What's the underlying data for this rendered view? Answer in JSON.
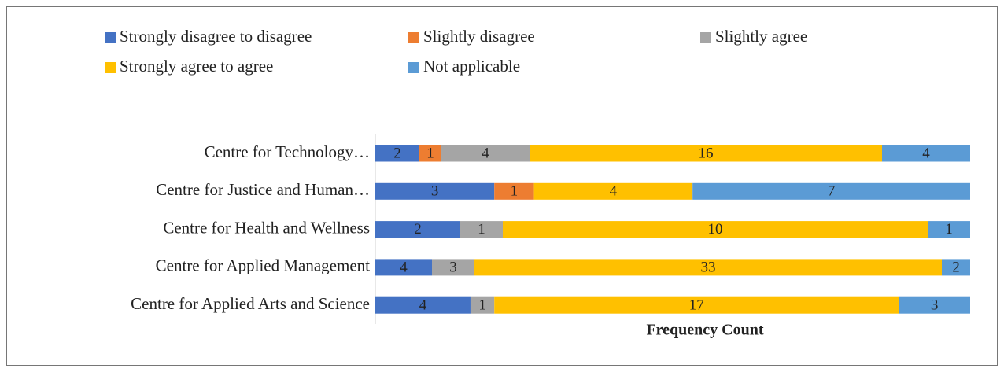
{
  "chart_data": {
    "type": "stacked-bar-100",
    "orientation": "horizontal",
    "x_axis_label": "Frequency Count",
    "categories": [
      "Centre for Technology…",
      "Centre for Justice and Human…",
      "Centre for Health and Wellness",
      "Centre for Applied Management",
      "Centre for Applied Arts and Science"
    ],
    "series": [
      {
        "name": "Strongly disagree to disagree",
        "color": "#4472c4",
        "values": [
          2,
          3,
          2,
          4,
          4
        ]
      },
      {
        "name": "Slightly disagree",
        "color": "#ed7d31",
        "values": [
          1,
          1,
          null,
          null,
          null
        ]
      },
      {
        "name": "Slightly agree",
        "color": "#a5a5a5",
        "values": [
          4,
          null,
          1,
          3,
          1
        ]
      },
      {
        "name": "Strongly agree to agree",
        "color": "#ffc000",
        "values": [
          16,
          4,
          10,
          33,
          17
        ]
      },
      {
        "name": "Not applicable",
        "color": "#5b9bd5",
        "values": [
          4,
          7,
          1,
          2,
          3
        ]
      }
    ]
  }
}
